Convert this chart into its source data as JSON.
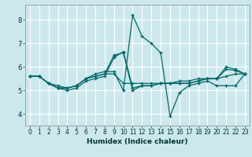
{
  "xlabel": "Humidex (Indice chaleur)",
  "background_color": "#cce8ec",
  "grid_color": "#ffffff",
  "line_color": "#006666",
  "xlim": [
    -0.5,
    23.5
  ],
  "ylim": [
    3.5,
    8.65
  ],
  "yticks": [
    4,
    5,
    6,
    7,
    8
  ],
  "xticks": [
    0,
    1,
    2,
    3,
    4,
    5,
    6,
    7,
    8,
    9,
    10,
    11,
    12,
    13,
    14,
    15,
    16,
    17,
    18,
    19,
    20,
    21,
    22,
    23
  ],
  "lines": [
    [
      5.6,
      5.6,
      5.3,
      5.1,
      5.1,
      5.2,
      5.5,
      5.6,
      5.7,
      6.5,
      6.6,
      5.0,
      5.2,
      5.2,
      5.3,
      5.3,
      5.3,
      5.3,
      5.4,
      5.5,
      5.5,
      6.0,
      5.9,
      5.7
    ],
    [
      5.6,
      5.6,
      5.3,
      5.1,
      5.0,
      5.1,
      5.4,
      5.5,
      5.6,
      6.4,
      6.65,
      5.1,
      5.2,
      5.2,
      5.3,
      5.3,
      5.3,
      5.3,
      5.4,
      5.5,
      5.5,
      5.9,
      5.85,
      5.7
    ],
    [
      5.6,
      5.6,
      5.3,
      5.2,
      5.1,
      5.2,
      5.5,
      5.7,
      5.8,
      5.8,
      5.0,
      8.2,
      7.3,
      7.0,
      6.6,
      3.9,
      4.9,
      5.2,
      5.3,
      5.4,
      5.2,
      5.2,
      5.2,
      5.7
    ],
    [
      5.6,
      5.6,
      5.3,
      5.1,
      5.1,
      5.2,
      5.5,
      5.6,
      5.7,
      5.7,
      5.3,
      5.3,
      5.3,
      5.3,
      5.3,
      5.3,
      5.4,
      5.4,
      5.5,
      5.5,
      5.5,
      5.6,
      5.7,
      5.7
    ]
  ]
}
